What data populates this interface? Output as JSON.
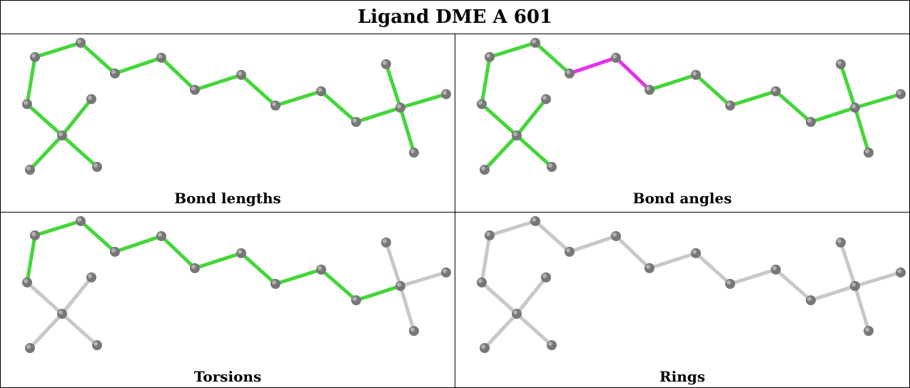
{
  "title": "Ligand DME A 601",
  "panels": [
    {
      "caption": "Bond lengths",
      "default_color": "#44d63a",
      "highlighted_bonds": []
    },
    {
      "caption": "Bond angles",
      "default_color": "#44d63a",
      "highlighted_bonds": [
        3,
        4
      ],
      "highlight_color": "#e632e6"
    },
    {
      "caption": "Torsions",
      "default_color": "#44d63a",
      "grey_bonds": [
        10,
        11,
        12,
        13,
        14,
        15,
        16
      ],
      "grey_color": "#c8c8c8"
    },
    {
      "caption": "Rings",
      "default_color": "#c8c8c8",
      "highlighted_bonds": []
    }
  ],
  "colors": {
    "atom": "#777777",
    "atom_highlight": "#b0b0b0",
    "border": "#000000"
  }
}
